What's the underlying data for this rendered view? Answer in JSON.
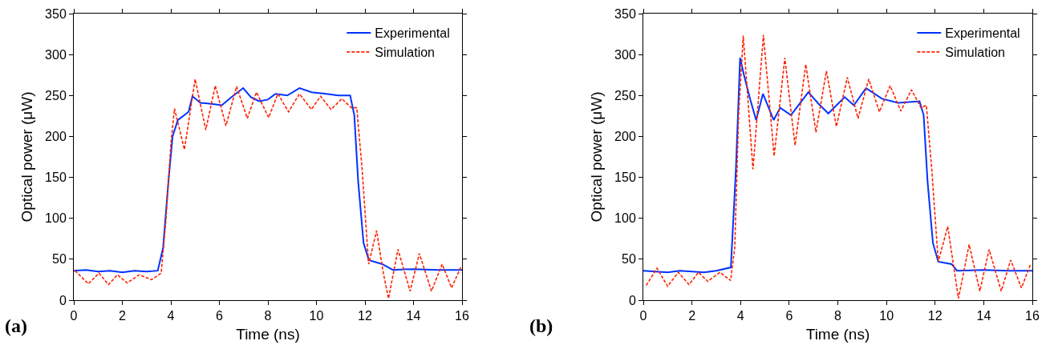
{
  "chart_data": [
    {
      "type": "line",
      "xlabel": "Time (ns)",
      "ylabel": "Optical power (μW)",
      "xlim": [
        0,
        16
      ],
      "ylim": [
        0,
        350
      ],
      "xticks": [
        0,
        2,
        4,
        6,
        8,
        10,
        12,
        14,
        16
      ],
      "yticks": [
        0,
        50,
        100,
        150,
        200,
        250,
        300,
        350
      ],
      "legend": "top right",
      "annotations": [
        "(a)"
      ],
      "series": [
        {
          "name": "Experimental",
          "color": "#0033ff",
          "line_style": "solid",
          "x": [
            0,
            0.5,
            1,
            1.5,
            2,
            2.5,
            3,
            3.46,
            3.68,
            3.9,
            4.07,
            4.29,
            4.73,
            4.89,
            5.22,
            5.6,
            6.1,
            6.5,
            6.98,
            7.3,
            7.64,
            8.0,
            8.31,
            8.8,
            9.3,
            9.8,
            10.4,
            10.9,
            11.39,
            11.56,
            11.72,
            11.94,
            12.16,
            12.71,
            13.15,
            14,
            15,
            16
          ],
          "values": [
            36,
            37,
            35,
            36,
            34,
            36,
            35,
            36,
            64,
            145,
            200,
            220,
            230,
            249,
            241,
            240,
            238,
            248,
            259,
            248,
            243,
            245,
            252,
            250,
            259,
            254,
            252,
            250,
            250,
            226,
            145,
            70,
            49,
            44,
            37,
            38,
            37,
            37
          ]
        },
        {
          "name": "Simulation",
          "color": "#ff2200",
          "line_style": "dashed",
          "x": [
            0.05,
            0.6,
            1.04,
            1.43,
            1.8,
            2.2,
            2.7,
            3.2,
            3.6,
            3.79,
            4.01,
            4.15,
            4.56,
            5.0,
            5.44,
            5.83,
            6.27,
            6.71,
            7.15,
            7.53,
            8.03,
            8.41,
            8.85,
            9.3,
            9.79,
            10.17,
            10.6,
            11.05,
            11.44,
            11.66,
            11.88,
            12.15,
            12.48,
            12.75,
            12.97,
            13.36,
            13.86,
            14.24,
            14.74,
            15.18,
            15.57,
            15.96
          ],
          "values": [
            36,
            20,
            33,
            19,
            31,
            21,
            31,
            25,
            33,
            96,
            194,
            234,
            184,
            270,
            208,
            262,
            213,
            261,
            222,
            254,
            223,
            252,
            230,
            252,
            233,
            249,
            233,
            246,
            235,
            235,
            161,
            44,
            85,
            34,
            2,
            62,
            11,
            57,
            11,
            44,
            15,
            41
          ]
        }
      ]
    },
    {
      "type": "line",
      "xlabel": "Time (ns)",
      "ylabel": "Optical power (μW)",
      "xlim": [
        0,
        16
      ],
      "ylim": [
        0,
        350
      ],
      "xticks": [
        0,
        2,
        4,
        6,
        8,
        10,
        12,
        14,
        16
      ],
      "yticks": [
        0,
        50,
        100,
        150,
        200,
        250,
        300,
        350
      ],
      "legend": "top right",
      "annotations": [
        "(b)"
      ],
      "series": [
        {
          "name": "Experimental",
          "color": "#0033ff",
          "line_style": "solid",
          "x": [
            0,
            0.5,
            1,
            1.5,
            2,
            2.5,
            3,
            3.6,
            3.81,
            3.98,
            4.14,
            4.4,
            4.64,
            4.92,
            5.36,
            5.63,
            6.07,
            6.79,
            7.2,
            7.61,
            8.28,
            8.66,
            9.16,
            9.82,
            10.48,
            11.36,
            11.53,
            11.69,
            11.91,
            12.13,
            12.68,
            12.9,
            14,
            15,
            16
          ],
          "values": [
            36,
            35,
            34,
            36,
            35,
            34,
            36,
            40,
            161,
            296,
            275,
            245,
            220,
            252,
            220,
            235,
            226,
            254,
            240,
            228,
            248,
            238,
            259,
            246,
            241,
            243,
            226,
            145,
            70,
            47,
            44,
            36,
            37,
            36,
            36
          ]
        },
        {
          "name": "Simulation",
          "color": "#ff2200",
          "line_style": "dashed",
          "x": [
            0.12,
            0.56,
            1.0,
            1.44,
            1.88,
            2.27,
            2.65,
            3.15,
            3.59,
            3.76,
            3.92,
            4.11,
            4.51,
            4.94,
            5.38,
            5.82,
            6.24,
            6.68,
            7.1,
            7.53,
            7.94,
            8.39,
            8.83,
            9.27,
            9.71,
            10.15,
            10.59,
            11.03,
            11.42,
            11.64,
            11.86,
            12.13,
            12.52,
            12.96,
            13.4,
            13.84,
            14.22,
            14.72,
            15.11,
            15.55,
            15.93
          ],
          "values": [
            18,
            39,
            17,
            34,
            19,
            34,
            23,
            34,
            24,
            64,
            227,
            323,
            160,
            324,
            176,
            296,
            189,
            288,
            205,
            280,
            212,
            272,
            222,
            270,
            230,
            262,
            231,
            257,
            235,
            238,
            161,
            47,
            90,
            2,
            68,
            11,
            62,
            11,
            49,
            15,
            44
          ]
        }
      ]
    }
  ]
}
